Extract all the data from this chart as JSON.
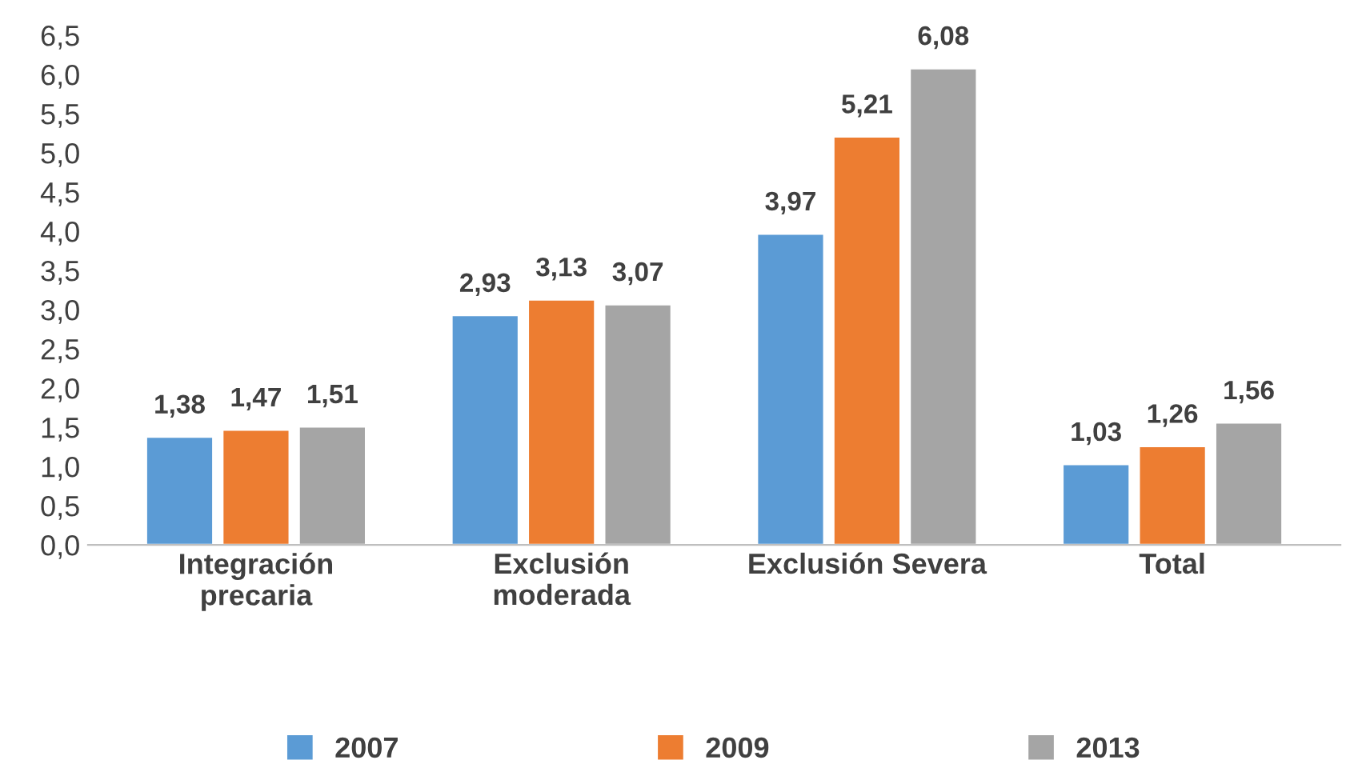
{
  "chart_data": {
    "type": "bar",
    "categories": [
      "Integración\nprecaria",
      "Exclusión\nmoderada",
      "Exclusión Severa",
      "Total"
    ],
    "series": [
      {
        "name": "2007",
        "color": "#5b9bd5",
        "values": [
          1.38,
          2.93,
          3.97,
          1.03
        ],
        "value_labels": [
          "1,38",
          "2,93",
          "3,97",
          "1,03"
        ]
      },
      {
        "name": "2009",
        "color": "#ed7d31",
        "values": [
          1.47,
          3.13,
          5.21,
          1.26
        ],
        "value_labels": [
          "1,47",
          "3,13",
          "5,21",
          "1,26"
        ]
      },
      {
        "name": "2013",
        "color": "#a5a5a5",
        "values": [
          1.51,
          3.07,
          6.08,
          1.56
        ],
        "value_labels": [
          "1,51",
          "3,07",
          "6,08",
          "1,56"
        ]
      }
    ],
    "ylim": [
      0,
      6.5
    ],
    "yticks": [
      {
        "value": 0,
        "label": "0,0"
      },
      {
        "value": 0.5,
        "label": "0,5"
      },
      {
        "value": 1,
        "label": "1,0"
      },
      {
        "value": 1.5,
        "label": "1,5"
      },
      {
        "value": 2,
        "label": "2,0"
      },
      {
        "value": 2.5,
        "label": "2,5"
      },
      {
        "value": 3,
        "label": "3,0"
      },
      {
        "value": 3.5,
        "label": "3,5"
      },
      {
        "value": 4,
        "label": "4,0"
      },
      {
        "value": 4.5,
        "label": "4,5"
      },
      {
        "value": 5,
        "label": "5,0"
      },
      {
        "value": 5.5,
        "label": "5,5"
      },
      {
        "value": 6,
        "label": "6,0"
      },
      {
        "value": 6.5,
        "label": "6,5"
      }
    ],
    "grid": false,
    "legend": "bottom"
  }
}
